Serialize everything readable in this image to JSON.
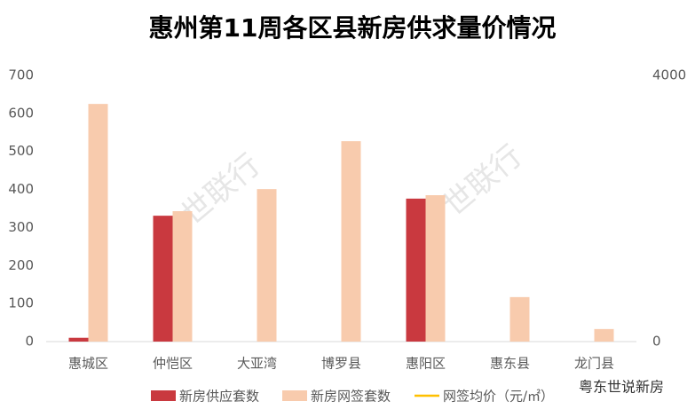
{
  "chart_data": {
    "type": "bar",
    "title": "惠州第11周各区县新房供求量价情况",
    "watermark": "世联行",
    "source": "粤东世说新房",
    "categories": [
      "惠城区",
      "仲恺区",
      "大亚湾",
      "博罗县",
      "惠阳区",
      "惠东县",
      "龙门县"
    ],
    "series": [
      {
        "name": "新房供应套数",
        "color": "#c9393f",
        "values": [
          10,
          331,
          0,
          0,
          376,
          0,
          0
        ]
      },
      {
        "name": "新房网签套数",
        "color": "#f8cbad",
        "values": [
          625,
          343,
          401,
          527,
          385,
          117,
          33
        ]
      },
      {
        "name": "网签均价（元/㎡）",
        "color": "#ffc000",
        "type": "line",
        "axis": "y2",
        "values": [
          null,
          null,
          null,
          null,
          null,
          null,
          null
        ]
      }
    ],
    "ylim": [
      0,
      700
    ],
    "yticks": [
      0,
      100,
      200,
      300,
      400,
      500,
      600,
      700
    ],
    "y2lim": [
      0,
      4000
    ],
    "y2ticks": [
      0,
      4000
    ],
    "grid": false,
    "legend": "bottom"
  }
}
